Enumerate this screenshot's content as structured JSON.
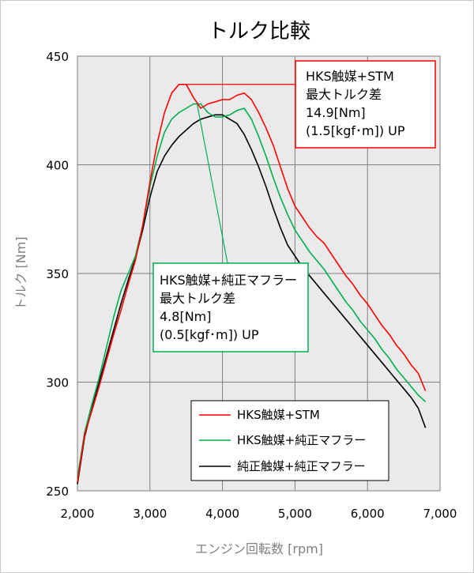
{
  "chart_data": {
    "type": "line",
    "title": "トルク比較",
    "xlabel": "エンジン回転数 [rpm]",
    "ylabel": "トルク [Nm]",
    "xlim": [
      2000,
      7000
    ],
    "ylim": [
      250,
      450
    ],
    "xticks": [
      2000,
      3000,
      4000,
      5000,
      6000,
      7000
    ],
    "yticks": [
      250,
      300,
      350,
      400,
      450
    ],
    "xtick_labels": [
      "2,000",
      "3,000",
      "4,000",
      "5,000",
      "6,000",
      "7,000"
    ],
    "ytick_labels": [
      "250",
      "300",
      "350",
      "400",
      "450"
    ],
    "grid": true,
    "legend_position": "bottom-right",
    "series": [
      {
        "name": "HKS触媒+STM",
        "color": "#ff0000",
        "x": [
          2000,
          2100,
          2200,
          2300,
          2400,
          2500,
          2600,
          2700,
          2800,
          2900,
          3000,
          3100,
          3200,
          3300,
          3400,
          3500,
          3600,
          3700,
          3800,
          3900,
          4000,
          4100,
          4200,
          4300,
          4400,
          4500,
          4600,
          4700,
          4800,
          4900,
          5000,
          5100,
          5200,
          5300,
          5400,
          5500,
          5600,
          5700,
          5800,
          5900,
          6000,
          6100,
          6200,
          6300,
          6400,
          6500,
          6600,
          6700,
          6800
        ],
        "y": [
          254,
          276,
          287,
          298,
          310,
          322,
          333,
          345,
          356,
          372,
          392,
          410,
          424,
          433,
          437,
          437,
          431,
          426,
          428,
          429,
          430,
          430,
          432,
          433,
          430,
          424,
          417,
          409,
          399,
          389,
          381,
          376,
          371,
          367,
          364,
          359,
          354,
          349,
          345,
          340,
          336,
          331,
          326,
          322,
          317,
          313,
          308,
          304,
          296
        ]
      },
      {
        "name": "HKS触媒+純正マフラー",
        "color": "#00b050",
        "x": [
          2000,
          2100,
          2200,
          2300,
          2400,
          2500,
          2600,
          2700,
          2800,
          2900,
          3000,
          3100,
          3200,
          3300,
          3400,
          3500,
          3600,
          3700,
          3800,
          3900,
          4000,
          4100,
          4200,
          4300,
          4400,
          4500,
          4600,
          4700,
          4800,
          4900,
          5000,
          5100,
          5200,
          5300,
          5400,
          5500,
          5600,
          5700,
          5800,
          5900,
          6000,
          6100,
          6200,
          6300,
          6400,
          6500,
          6600,
          6700,
          6800
        ],
        "y": [
          256,
          277,
          290,
          302,
          316,
          330,
          342,
          350,
          358,
          372,
          390,
          404,
          415,
          421,
          424,
          426,
          428,
          428,
          424,
          422,
          422,
          423,
          425,
          426,
          421,
          413,
          404,
          394,
          385,
          377,
          370,
          365,
          360,
          356,
          352,
          347,
          342,
          337,
          333,
          328,
          324,
          320,
          315,
          311,
          306,
          302,
          298,
          294,
          291
        ]
      },
      {
        "name": "純正触媒+純正マフラー",
        "color": "#000000",
        "x": [
          2000,
          2100,
          2200,
          2300,
          2400,
          2500,
          2600,
          2700,
          2800,
          2900,
          3000,
          3100,
          3200,
          3300,
          3400,
          3500,
          3600,
          3700,
          3800,
          3900,
          4000,
          4100,
          4200,
          4300,
          4400,
          4500,
          4600,
          4700,
          4800,
          4900,
          5000,
          5100,
          5200,
          5300,
          5400,
          5500,
          5600,
          5700,
          5800,
          5900,
          6000,
          6100,
          6200,
          6300,
          6400,
          6500,
          6600,
          6700,
          6800
        ],
        "y": [
          253,
          275,
          288,
          300,
          312,
          324,
          336,
          347,
          357,
          370,
          385,
          397,
          404,
          409,
          413,
          416,
          419,
          421,
          422,
          423,
          423,
          421,
          419,
          414,
          407,
          399,
          390,
          380,
          371,
          363,
          358,
          353,
          349,
          345,
          341,
          337,
          333,
          329,
          325,
          321,
          317,
          313,
          309,
          305,
          301,
          297,
          293,
          288,
          279
        ]
      }
    ],
    "annotations": [
      {
        "lines": [
          "HKS触媒+STM",
          "最大トルク差",
          "14.9[Nm]",
          "(1.5[kgf･m])  UP"
        ],
        "border_color": "#ff0000",
        "target": [
          3500,
          437
        ]
      },
      {
        "lines": [
          "HKS触媒+純正マフラー",
          "最大トルク差",
          "4.8[Nm]",
          "(0.5[kgf･m])  UP"
        ],
        "border_color": "#00b050",
        "target": [
          3650,
          428
        ]
      }
    ]
  }
}
